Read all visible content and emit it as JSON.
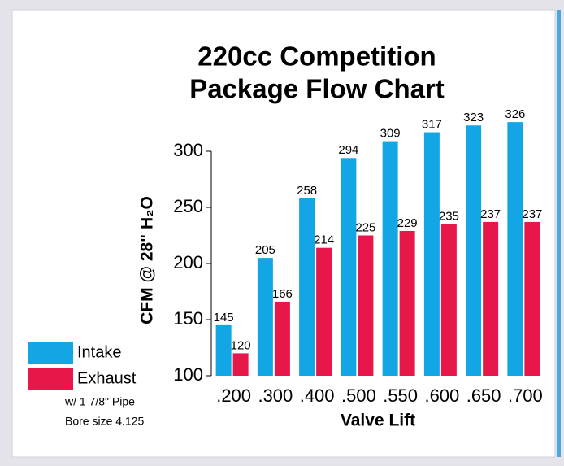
{
  "chart_data": {
    "type": "bar",
    "title": [
      "220cc Competition",
      "Package Flow Chart"
    ],
    "x_label": "Valve Lift",
    "y_label": "CFM @ 28\" H₂O",
    "categories": [
      ".200",
      ".300",
      ".400",
      ".500",
      ".550",
      ".600",
      ".650",
      ".700"
    ],
    "series": [
      {
        "name": "Intake",
        "color": "#12a6e4",
        "values": [
          145,
          205,
          258,
          294,
          309,
          317,
          323,
          326
        ]
      },
      {
        "name": "Exhaust",
        "color": "#e8174a",
        "values": [
          120,
          166,
          214,
          225,
          229,
          235,
          237,
          237
        ]
      }
    ],
    "notes": [
      "w/ 1 7/8\" Pipe",
      "Bore size 4.125"
    ],
    "ylim": [
      100,
      330
    ],
    "yticks": [
      100,
      150,
      200,
      250,
      300
    ],
    "legend": "lower left",
    "grid": false
  }
}
